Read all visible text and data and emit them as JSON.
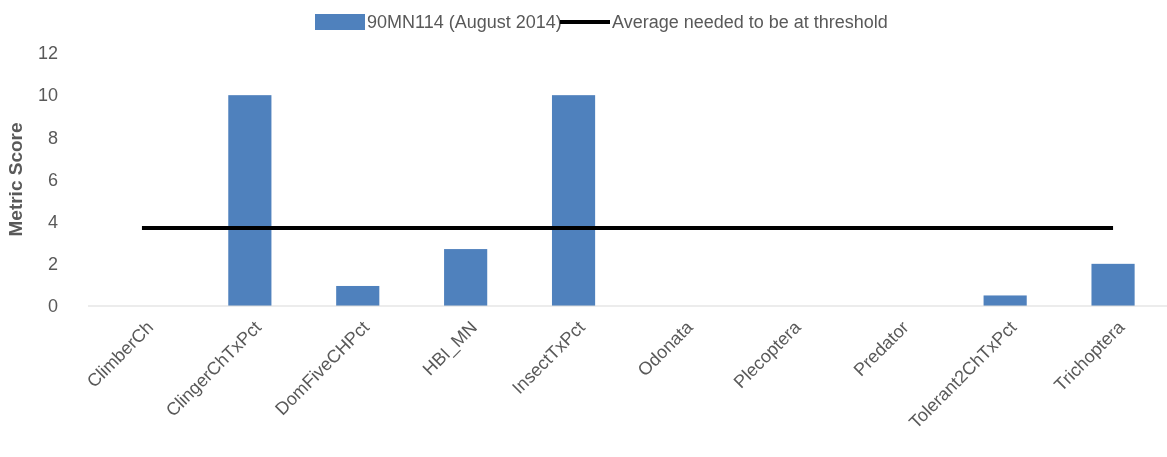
{
  "chart_data": {
    "type": "bar",
    "ylabel": "Metric Score",
    "categories": [
      "ClimberCh",
      "ClingerChTxPct",
      "DomFiveCHPct",
      "HBI_MN",
      "InsectTxPct",
      "Odonata",
      "Plecoptera",
      "Predator",
      "Tolerant2ChTxPct",
      "Trichoptera"
    ],
    "series": [
      {
        "name": "90MN114 (August 2014)",
        "color": "#4f81bd",
        "values": [
          0,
          10,
          0.95,
          2.7,
          10,
          0,
          0,
          0,
          0.5,
          2
        ]
      },
      {
        "name": "Average needed to be at threshold",
        "type": "line",
        "color": "#000000",
        "values": [
          3.7,
          3.7,
          3.7,
          3.7,
          3.7,
          3.7,
          3.7,
          3.7,
          3.7,
          3.7
        ]
      }
    ],
    "ylim": [
      0,
      12
    ],
    "yticks": [
      0,
      2,
      4,
      6,
      8,
      10,
      12
    ],
    "grid": false,
    "legend": "top"
  }
}
